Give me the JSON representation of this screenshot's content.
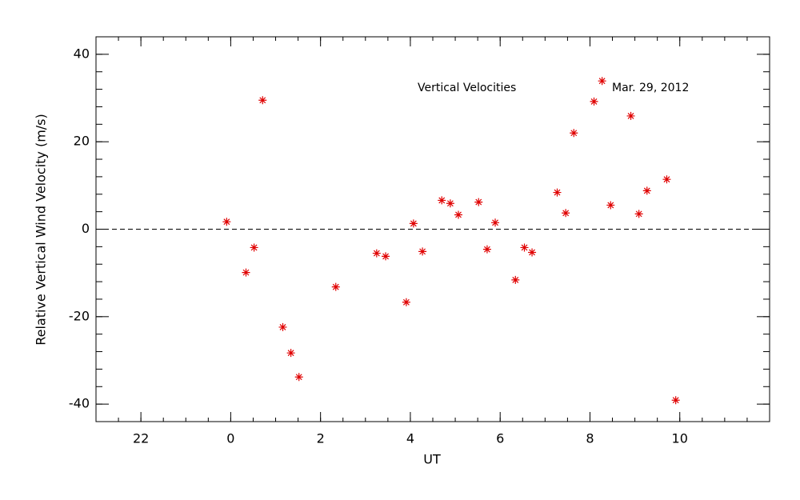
{
  "chart_data": {
    "type": "scatter",
    "x_label": "UT",
    "y_label": "Relative Vertical Wind Velocity (m/s)",
    "annotations": [
      "Vertical Velocities",
      "Mar. 29, 2012"
    ],
    "series": [
      {
        "name": "Vertical Velocities",
        "color": "#e00000",
        "x": [
          -0.09,
          0.34,
          0.52,
          0.71,
          1.16,
          1.34,
          1.52,
          2.34,
          3.25,
          3.45,
          3.91,
          4.07,
          4.27,
          4.7,
          4.89,
          5.07,
          5.52,
          5.71,
          5.89,
          6.34,
          6.54,
          6.71,
          7.27,
          7.46,
          7.64,
          8.09,
          8.27,
          8.46,
          8.91,
          9.09,
          9.27,
          9.71,
          9.91
        ],
        "values": [
          1.7,
          -9.9,
          -4.2,
          29.5,
          -22.4,
          -28.3,
          -33.8,
          -13.2,
          -5.5,
          -6.2,
          -16.7,
          1.3,
          -5.1,
          6.6,
          5.9,
          3.3,
          6.2,
          -4.6,
          1.5,
          -11.6,
          -4.2,
          -5.3,
          8.4,
          3.7,
          22.0,
          29.2,
          33.9,
          5.5,
          25.9,
          3.5,
          8.8,
          11.4,
          -39.1
        ]
      }
    ],
    "xlim": [
      -3,
      12
    ],
    "xticks": [
      {
        "value": -2,
        "label": "22"
      },
      0,
      2,
      4,
      6,
      8,
      10
    ],
    "xminor": 0.5,
    "ylim": [
      -44,
      44
    ],
    "yticks": [
      -40,
      -20,
      0,
      20,
      40
    ],
    "yminor": 4,
    "reference_line": 0,
    "grid": false
  }
}
